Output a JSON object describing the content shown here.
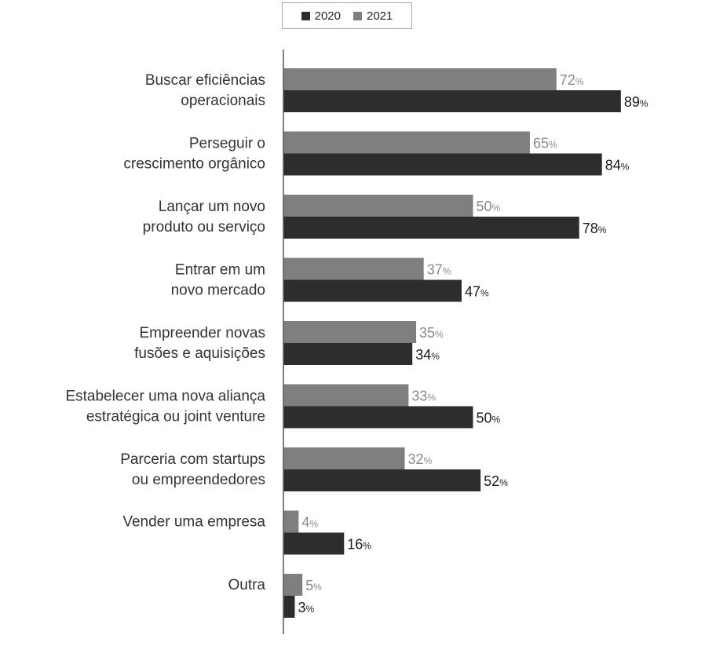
{
  "chart_data": {
    "type": "bar",
    "orientation": "horizontal",
    "categories": [
      [
        "Buscar eficiências",
        "operacionais"
      ],
      [
        "Perseguir o",
        "crescimento orgânico"
      ],
      [
        "Lançar um novo",
        "produto ou serviço"
      ],
      [
        "Entrar em um",
        "novo mercado"
      ],
      [
        "Empreender novas",
        "fusões e aquisições"
      ],
      [
        "Estabelecer uma nova aliança",
        "estratégica ou joint venture"
      ],
      [
        "Parceria com startups",
        "ou empreendedores"
      ],
      [
        "Vender uma empresa"
      ],
      [
        "Outra"
      ]
    ],
    "series": [
      {
        "name": "2021",
        "color": "#7f7f7f",
        "label_color": "#8a8a8a",
        "values": [
          72,
          65,
          50,
          37,
          35,
          33,
          32,
          4,
          5
        ]
      },
      {
        "name": "2020",
        "color": "#2d2d2d",
        "label_color": "#1a1a1a",
        "values": [
          89,
          84,
          78,
          47,
          34,
          50,
          52,
          16,
          3
        ]
      }
    ],
    "unit_suffix": "%",
    "xlim": [
      0,
      100
    ],
    "grid": false,
    "legend": {
      "placement": "top",
      "items": [
        {
          "label": "2020",
          "color": "#2d2d2d"
        },
        {
          "label": "2021",
          "color": "#7f7f7f"
        }
      ]
    }
  }
}
